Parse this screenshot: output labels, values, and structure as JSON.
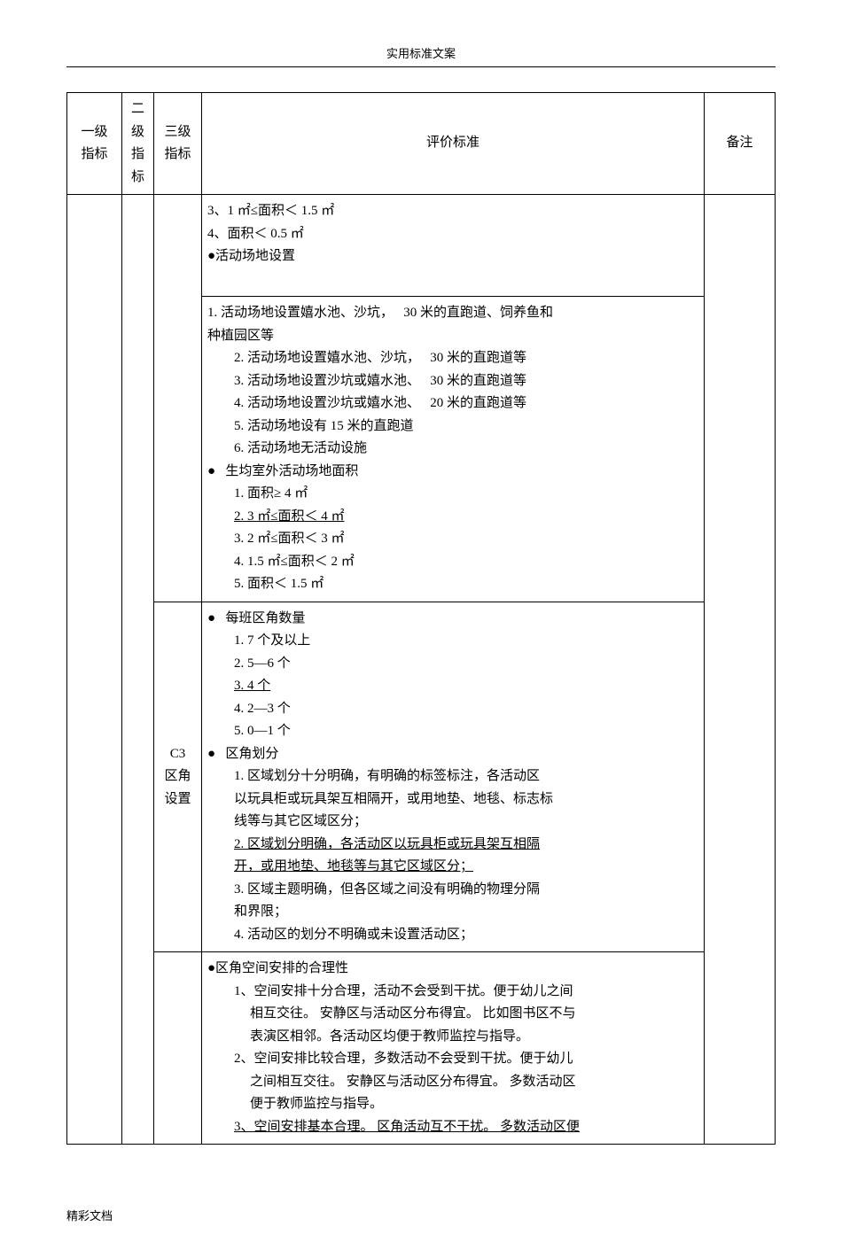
{
  "doc": {
    "header_title": "实用标准文案",
    "footer": "精彩文档"
  },
  "columns": {
    "c1": "一级\n指标",
    "c2": "二\n级\n指\n标",
    "c3": "三级\n指标",
    "c4": "评价标准",
    "c5": "备注"
  },
  "c3_zone": "C3\n区角\n设置",
  "cell_a": {
    "l1": "3、1 ㎡≤面积＜ 1.5 ㎡",
    "l2": "4、面积＜ 0.5 ㎡",
    "l3": "●活动场地设置"
  },
  "cell_b": {
    "l1a": "1.  活动场地设置嬉水池、沙坑，",
    "l1b": "30 米的直跑道、饲养鱼和",
    "l2": "种植园区等",
    "l3a": "2.  活动场地设置嬉水池、沙坑，",
    "l3b": "30 米的直跑道等",
    "l4a": "3.  活动场地设置沙坑或嬉水池、",
    "l4b": "30 米的直跑道等",
    "l5a": "4.  活动场地设置沙坑或嬉水池、",
    "l5b": "20 米的直跑道等",
    "l6": "5.  活动场地设有  15 米的直跑道",
    "l7": "6.  活动场地无活动设施",
    "b1": "生均室外活动场地面积",
    "a1": "1.  面积≥ 4 ㎡",
    "a2": "2.  3 ㎡≤面积＜ 4 ㎡",
    "a3": "3.  2 ㎡≤面积＜ 3 ㎡",
    "a4": "4.  1.5  ㎡≤面积＜ 2 ㎡",
    "a5": "5.  面积＜ 1.5  ㎡"
  },
  "cell_c": {
    "b1": "每班区角数量",
    "q1": "1.  7 个及以上",
    "q2": "2.  5—6 个",
    "q3": "3.  4 个",
    "q4": "4.  2—3 个",
    "q5": "5.  0—1 个",
    "b2": "区角划分",
    "d1": "1.  区域划分十分明确，有明确的标签标注，各活动区",
    "d1b": "以玩具柜或玩具架互相隔开，或用地垫、地毯、标志标",
    "d1c": "线等与其它区域区分；",
    "d2": "2.  区域划分明确，各活动区以玩具柜或玩具架互相隔",
    "d2b": "开，或用地垫、地毯等与其它区域区分；",
    "d3": "3.  区域主题明确，但各区域之间没有明确的物理分隔",
    "d3b": "和界限；",
    "d4": "4.  活动区的划分不明确或未设置活动区；"
  },
  "cell_d": {
    "h": "●区角空间安排的合理性",
    "s1": "1、空间安排十分合理，活动不会受到干扰。便于幼儿之间",
    "s1b": "相互交往。 安静区与活动区分布得宜。  比如图书区不与",
    "s1c": "表演区相邻。各活动区均便于教师监控与指导。",
    "s2": "2、空间安排比较合理，多数活动不会受到干扰。便于幼儿",
    "s2b": "之间相互交往。 安静区与活动区分布得宜。  多数活动区",
    "s2c": "便于教师监控与指导。",
    "s3": "3、空间安排基本合理。  区角活动互不干扰。  多数活动区便"
  }
}
